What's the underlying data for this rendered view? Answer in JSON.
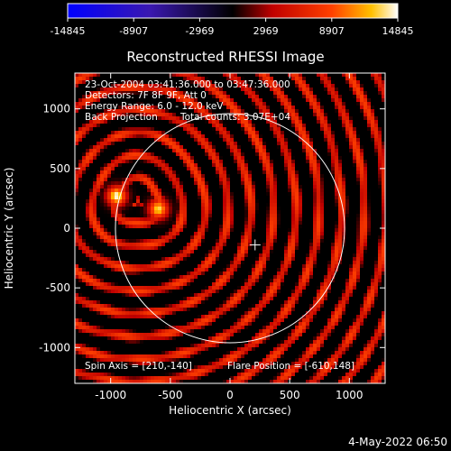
{
  "colorbar": {
    "ticks": [
      "-14845",
      "-8907",
      "-2969",
      "2969",
      "8907",
      "14845"
    ]
  },
  "chart_data": {
    "type": "heatmap",
    "title": "Reconstructed RHESSI Image",
    "xlabel": "Heliocentric X (arcsec)",
    "ylabel": "Heliocentric Y (arcsec)",
    "xlim": [
      -1300,
      1300
    ],
    "ylim": [
      -1300,
      1300
    ],
    "xticks": [
      -1000,
      -500,
      0,
      500,
      1000
    ],
    "yticks": [
      -1000,
      -500,
      0,
      500,
      1000
    ],
    "color_range": [
      -14845,
      14845
    ],
    "solar_disk": {
      "center": [
        0,
        0
      ],
      "radius": 960
    },
    "marker": {
      "x": 210,
      "y": -140
    },
    "sources": [
      {
        "x": -950,
        "y": 270,
        "intensity": 14845
      },
      {
        "x": -600,
        "y": 160,
        "intensity": 13500
      }
    ],
    "annotations": {
      "time": "23-Oct-2004 03:41:36.000 to 03:47:36.000",
      "detectors": "Detectors: 7F 8F 9F, Att 0",
      "energy": "Energy Range: 6.0 - 12.0 keV",
      "method": "Back Projection",
      "counts": "Total counts: 3.07E+04",
      "spin_axis": "Spin Axis = [210,-140]",
      "flare_position": "Flare Position = [-610,148]"
    }
  },
  "footer": {
    "date": "4-May-2022 06:50"
  }
}
